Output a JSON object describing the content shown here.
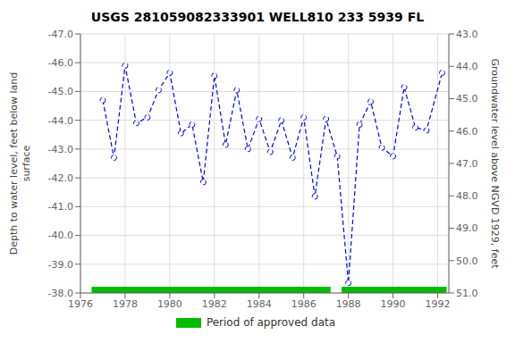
{
  "chart_data": {
    "type": "line",
    "title": "USGS 281059082333901 WELL810 233 5939 FL",
    "ylabel": "Depth to water level, feet below land\nsurface",
    "y2label": "Groundwater level above NGVD 1929, feet",
    "x": [
      1977.0,
      1977.5,
      1978.0,
      1978.5,
      1979.0,
      1979.5,
      1980.0,
      1980.5,
      1981.0,
      1981.5,
      1982.0,
      1982.5,
      1983.0,
      1983.5,
      1984.0,
      1984.5,
      1985.0,
      1985.5,
      1986.0,
      1986.5,
      1987.0,
      1987.5,
      1988.0,
      1988.5,
      1989.0,
      1989.5,
      1990.0,
      1990.5,
      1991.0,
      1991.5,
      1992.2
    ],
    "values": [
      -44.7,
      -42.7,
      -45.9,
      -43.9,
      -44.1,
      -45.05,
      -45.65,
      -43.55,
      -43.85,
      -41.85,
      -45.55,
      -43.15,
      -45.05,
      -43.0,
      -44.05,
      -42.9,
      -44.0,
      -42.7,
      -44.1,
      -41.35,
      -44.05,
      -42.75,
      -38.35,
      -43.85,
      -44.65,
      -43.05,
      -42.75,
      -45.15,
      -43.75,
      -43.65,
      -45.65
    ],
    "color": "#0000ff",
    "line_style": "dashed",
    "marker": "circle",
    "xlim": [
      1976,
      1992.5
    ],
    "xticks": [
      1976,
      1978,
      1980,
      1982,
      1984,
      1986,
      1988,
      1990,
      1992
    ],
    "ylim": [
      -38.0,
      -47.0
    ],
    "yticks": [
      {
        "value": -47.0,
        "label": "-47.0"
      },
      {
        "value": -46.0,
        "label": "-46.0"
      },
      {
        "value": -45.0,
        "label": "-45.0"
      },
      {
        "value": -44.0,
        "label": "-44.0"
      },
      {
        "value": -43.0,
        "label": "-43.0"
      },
      {
        "value": -42.0,
        "label": "-42.0"
      },
      {
        "value": -41.0,
        "label": "-41.0"
      },
      {
        "value": -40.0,
        "label": "-40.0"
      },
      {
        "value": -39.0,
        "label": "-39.0"
      },
      {
        "value": -38.0,
        "label": "-38.0"
      }
    ],
    "y2lim": [
      51.0,
      43.0
    ],
    "y2ticks": [
      {
        "value": 43.0,
        "label": "43.0"
      },
      {
        "value": 44.0,
        "label": "44.0"
      },
      {
        "value": 45.0,
        "label": "45.0"
      },
      {
        "value": 46.0,
        "label": "46.0"
      },
      {
        "value": 47.0,
        "label": "47.0"
      },
      {
        "value": 48.0,
        "label": "48.0"
      },
      {
        "value": 49.0,
        "label": "49.0"
      },
      {
        "value": 50.0,
        "label": "50.0"
      },
      {
        "value": 51.0,
        "label": "51.0"
      }
    ],
    "approved_periods": {
      "name": "Period of approved data",
      "color": "#00bb00",
      "ranges": [
        [
          1976.5,
          1987.2
        ],
        [
          1987.7,
          1992.4
        ]
      ]
    },
    "grid": true,
    "legend": "bottom"
  }
}
